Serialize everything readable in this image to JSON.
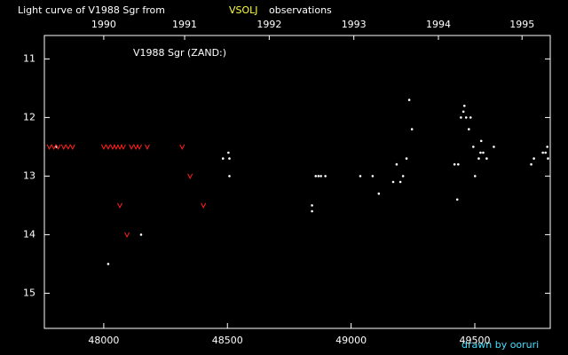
{
  "chart_data": {
    "type": "scatter",
    "title": "Light curve of V1988 Sgr from",
    "title_source": "VSOLJ",
    "title_suffix": "observations",
    "subtitle": "V1988 Sgr (ZAND:)",
    "credit": "drawn by ooruri",
    "xlim": [
      47760,
      49805
    ],
    "ylim": [
      10.6,
      15.6
    ],
    "y_inverted": true,
    "xticks": [
      48000,
      48500,
      49000,
      49500
    ],
    "yticks": [
      11,
      12,
      13,
      14,
      15
    ],
    "x2ticks": [
      {
        "value": 48000,
        "label": "1990"
      },
      {
        "value": 48327,
        "label": "1991"
      },
      {
        "value": 48669,
        "label": "1992"
      },
      {
        "value": 49011,
        "label": "1993"
      },
      {
        "value": 49353,
        "label": "1994"
      },
      {
        "value": 49691,
        "label": "1995"
      }
    ],
    "series": [
      {
        "color": "#ffffff",
        "marker": "dot",
        "x": [
          47809,
          48018,
          48151,
          48482,
          48504,
          48508,
          48508,
          48842,
          48842,
          48857,
          48868,
          48878,
          48896,
          49037,
          49087,
          49112,
          49170,
          49184,
          49199,
          49210,
          49224,
          49235,
          49246,
          49418,
          49429,
          49433,
          49444,
          49454,
          49458,
          49465,
          49476,
          49483,
          49494,
          49501,
          49516,
          49523,
          49526,
          49534,
          49548,
          49577,
          49728,
          49739,
          49775,
          49786,
          49793,
          49796
        ],
        "values": [
          12.5,
          14.5,
          14.0,
          12.7,
          12.6,
          12.7,
          13.0,
          13.5,
          13.6,
          13.0,
          13.0,
          13.0,
          13.0,
          13.0,
          13.0,
          13.3,
          13.1,
          12.8,
          13.1,
          13.0,
          12.7,
          11.7,
          12.2,
          12.8,
          13.4,
          12.8,
          12.0,
          11.9,
          11.8,
          12.0,
          12.2,
          12.0,
          12.5,
          13.0,
          12.7,
          12.6,
          12.4,
          12.6,
          12.7,
          12.5,
          12.8,
          12.7,
          12.6,
          12.6,
          12.5,
          12.7
        ]
      },
      {
        "color": "#ff2020",
        "marker": "v",
        "x": [
          47780,
          47798,
          47816,
          47838,
          47856,
          47874,
          48000,
          48018,
          48036,
          48050,
          48065,
          48079,
          48112,
          48130,
          48144,
          48176,
          48317,
          48065,
          48094,
          48349,
          48403
        ],
        "values": [
          12.5,
          12.5,
          12.5,
          12.5,
          12.5,
          12.5,
          12.5,
          12.5,
          12.5,
          12.5,
          12.5,
          12.5,
          12.5,
          12.5,
          12.5,
          12.5,
          12.5,
          13.5,
          14.0,
          13.0,
          13.5
        ]
      }
    ]
  }
}
